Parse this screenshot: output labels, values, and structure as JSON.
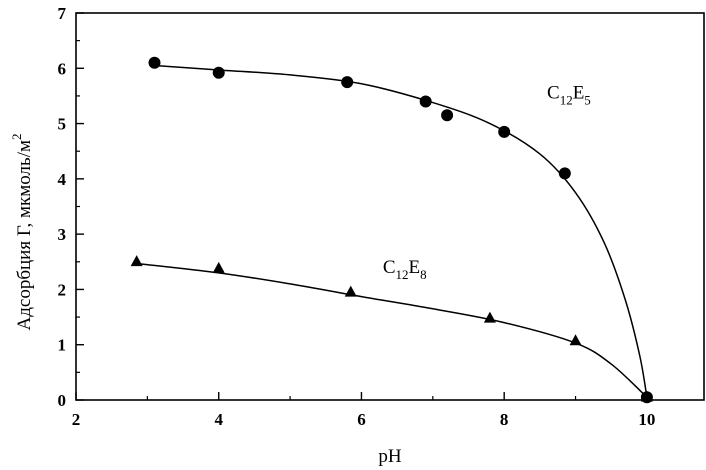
{
  "chart_data": {
    "type": "scatter",
    "xlabel": "pH",
    "ylabel": "Адсорбция Γ, мкмоль/м",
    "ylabel_sup": "2",
    "xlim": [
      2,
      10.8
    ],
    "ylim": [
      0,
      7
    ],
    "xticks": [
      2,
      4,
      6,
      8,
      10
    ],
    "yticks": [
      0,
      1,
      2,
      3,
      4,
      5,
      6,
      7
    ],
    "grid": false,
    "series": [
      {
        "name": "C12E5",
        "label_parts": {
          "base1": "C",
          "sub1": "12",
          "base2": "E",
          "sub2": "5"
        },
        "marker": "circle",
        "points": [
          {
            "x": 3.1,
            "y": 6.1
          },
          {
            "x": 4.0,
            "y": 5.92
          },
          {
            "x": 5.8,
            "y": 5.75
          },
          {
            "x": 6.9,
            "y": 5.4
          },
          {
            "x": 7.2,
            "y": 5.15
          },
          {
            "x": 8.0,
            "y": 4.85
          },
          {
            "x": 8.85,
            "y": 4.1
          },
          {
            "x": 10.0,
            "y": 0.05
          }
        ],
        "fit": [
          {
            "x": 3.1,
            "y": 6.05
          },
          {
            "x": 4.0,
            "y": 5.97
          },
          {
            "x": 5.0,
            "y": 5.88
          },
          {
            "x": 6.0,
            "y": 5.72
          },
          {
            "x": 7.0,
            "y": 5.38
          },
          {
            "x": 7.8,
            "y": 5.0
          },
          {
            "x": 8.5,
            "y": 4.45
          },
          {
            "x": 9.0,
            "y": 3.75
          },
          {
            "x": 9.4,
            "y": 2.85
          },
          {
            "x": 9.7,
            "y": 1.8
          },
          {
            "x": 9.9,
            "y": 0.8
          },
          {
            "x": 10.0,
            "y": 0.05
          }
        ]
      },
      {
        "name": "C12E8",
        "label_parts": {
          "base1": "C",
          "sub1": "12",
          "base2": "E",
          "sub2": "8"
        },
        "marker": "triangle",
        "points": [
          {
            "x": 2.85,
            "y": 2.5
          },
          {
            "x": 4.0,
            "y": 2.38
          },
          {
            "x": 5.85,
            "y": 1.95
          },
          {
            "x": 7.8,
            "y": 1.48
          },
          {
            "x": 9.0,
            "y": 1.07
          },
          {
            "x": 10.0,
            "y": 0.05
          }
        ],
        "fit": [
          {
            "x": 2.85,
            "y": 2.47
          },
          {
            "x": 4.0,
            "y": 2.3
          },
          {
            "x": 5.0,
            "y": 2.1
          },
          {
            "x": 6.0,
            "y": 1.87
          },
          {
            "x": 7.0,
            "y": 1.65
          },
          {
            "x": 8.0,
            "y": 1.4
          },
          {
            "x": 9.0,
            "y": 1.03
          },
          {
            "x": 9.5,
            "y": 0.65
          },
          {
            "x": 10.0,
            "y": 0.05
          }
        ]
      }
    ]
  }
}
